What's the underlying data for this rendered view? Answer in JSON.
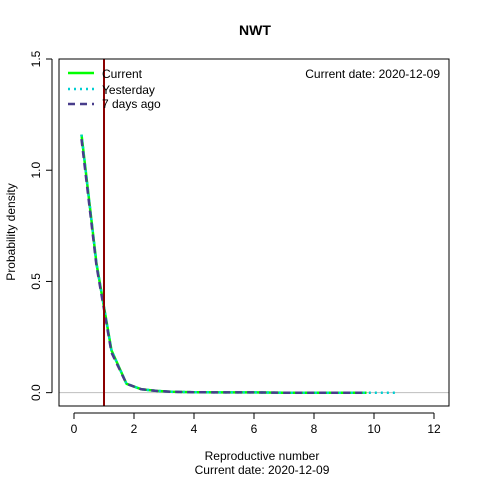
{
  "chart_data": {
    "type": "line",
    "title": "NWT",
    "xlabel": "Reproductive number",
    "xlabel_sub": "Current date:  2020-12-09",
    "ylabel": "Probability density",
    "annotation": "Current date:  2020-12-09",
    "xlim": [
      -0.5,
      12.5
    ],
    "ylim": [
      -0.06,
      1.5
    ],
    "x_ticks": [
      0,
      2,
      4,
      6,
      8,
      10,
      12
    ],
    "y_ticks": [
      0.0,
      0.5,
      1.0,
      1.5
    ],
    "y_tick_labels": [
      "0.0",
      "0.5",
      "1.0",
      "1.5"
    ],
    "reference_lines": {
      "vertical_x": 1,
      "vertical_color": "#8b0000",
      "horizontal_y": 0,
      "horizontal_color": "#bebebe"
    },
    "legend_position": "top-left",
    "series": [
      {
        "name": "Current",
        "color": "#00ff00",
        "style": "solid",
        "x": [
          0.25,
          0.75,
          1.25,
          1.75,
          2.25,
          2.75,
          3.25,
          4,
          5,
          6,
          7,
          8,
          9,
          9.75
        ],
        "y": [
          1.16,
          0.58,
          0.19,
          0.04,
          0.015,
          0.008,
          0.004,
          0.002,
          0.001,
          0.001,
          0.0,
          0.0,
          0.0,
          0.0
        ]
      },
      {
        "name": "Yesterday",
        "color": "#00ced1",
        "style": "dotted",
        "x": [
          0.25,
          0.75,
          1.25,
          1.75,
          2.25,
          2.75,
          3.25,
          4,
          5,
          6,
          7,
          8,
          9,
          10,
          10.75
        ],
        "y": [
          1.16,
          0.58,
          0.19,
          0.04,
          0.015,
          0.008,
          0.004,
          0.002,
          0.001,
          0.001,
          0.0,
          0.0,
          0.0,
          0.0,
          0.0
        ]
      },
      {
        "name": "7 days ago",
        "color": "#483d8b",
        "style": "dashed",
        "x": [
          0.25,
          0.75,
          1.25,
          1.75,
          2.25,
          2.75,
          3.25,
          4,
          5,
          6,
          7,
          8,
          9,
          9.75
        ],
        "y": [
          1.14,
          0.57,
          0.18,
          0.04,
          0.015,
          0.008,
          0.004,
          0.002,
          0.001,
          0.001,
          0.0,
          0.0,
          0.0,
          0.0
        ]
      }
    ]
  }
}
